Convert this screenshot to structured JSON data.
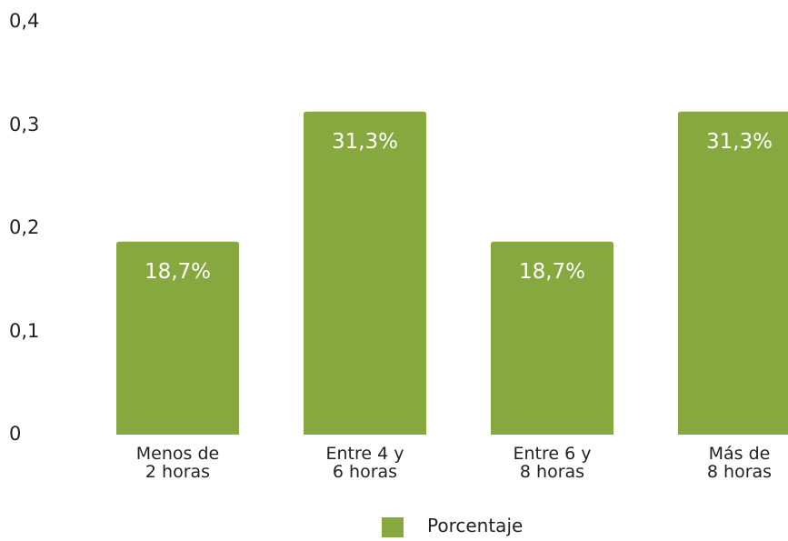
{
  "chart_data": {
    "type": "bar",
    "categories": [
      "Menos de\n2 horas",
      "Entre 4 y\n6 horas",
      "Entre 6 y\n8 horas",
      "Más de\n8 horas"
    ],
    "series": [
      {
        "name": "Porcentaje",
        "color": "#86a83e",
        "values": [
          0.187,
          0.313,
          0.187,
          0.313
        ],
        "value_labels": [
          "18,7%",
          "31,3%",
          "18,7%",
          "31,3%"
        ]
      }
    ],
    "ylim": [
      0,
      0.4
    ],
    "yticks": [
      0,
      {
        "value": 0.1,
        "label": "0,1"
      },
      {
        "value": 0.2,
        "label": "0,2"
      },
      {
        "value": 0.3,
        "label": "0,3"
      },
      {
        "value": 0.4,
        "label": "0,4"
      }
    ],
    "grid": false,
    "legend": "bottom"
  }
}
